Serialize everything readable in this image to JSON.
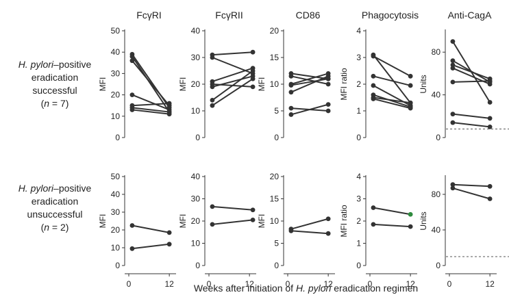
{
  "row_labels": [
    {
      "organism": "H. pylori",
      "status": "–positive",
      "line2": "eradication",
      "line3": "successful",
      "n_label": "n",
      "n_rest": " = 7)",
      "n_open": "("
    },
    {
      "organism": "H. pylori",
      "status": "–positive",
      "line2": "eradication",
      "line3": "unsuccessful",
      "n_label": "n",
      "n_rest": " = 2)",
      "n_open": "("
    }
  ],
  "x_caption": {
    "before": "Weeks after initiation of ",
    "italic": "H. pylori",
    "after": " eradication regimen"
  },
  "x_ticks": [
    "0",
    "12"
  ],
  "colors": {
    "line": "#333333",
    "highlight_point": "#2e8b3e",
    "dashed": "#555555"
  },
  "chart_data": [
    {
      "type": "line",
      "title": "FcγRI",
      "row": 0,
      "col": 0,
      "ylabel": "MFI",
      "ylim": [
        0,
        50
      ],
      "yticks": [
        0,
        10,
        20,
        30,
        40,
        50
      ],
      "x": [
        1,
        12
      ],
      "series": [
        {
          "values": [
            39,
            14
          ]
        },
        {
          "values": [
            38,
            12
          ]
        },
        {
          "values": [
            36,
            15
          ]
        },
        {
          "values": [
            20,
            13
          ]
        },
        {
          "values": [
            15,
            16
          ]
        },
        {
          "values": [
            14,
            12
          ]
        },
        {
          "values": [
            13,
            11
          ]
        }
      ]
    },
    {
      "type": "line",
      "title": "FcγRII",
      "row": 0,
      "col": 1,
      "ylabel": "MFI",
      "ylim": [
        0,
        40
      ],
      "yticks": [
        0,
        10,
        20,
        30,
        40
      ],
      "x": [
        1,
        13
      ],
      "series": [
        {
          "values": [
            31,
            32
          ]
        },
        {
          "values": [
            30,
            24
          ]
        },
        {
          "values": [
            21,
            26
          ]
        },
        {
          "values": [
            20,
            19
          ]
        },
        {
          "values": [
            19,
            23
          ]
        },
        {
          "values": [
            14,
            25
          ]
        },
        {
          "values": [
            12,
            22
          ]
        }
      ]
    },
    {
      "type": "line",
      "title": "CD86",
      "row": 0,
      "col": 2,
      "ylabel": "MFI",
      "ylim": [
        0,
        20
      ],
      "yticks": [
        0,
        5,
        10,
        15,
        20
      ],
      "x": [
        1,
        12
      ],
      "series": [
        {
          "values": [
            12,
            11
          ]
        },
        {
          "values": [
            11.5,
            10
          ]
        },
        {
          "values": [
            10,
            12
          ]
        },
        {
          "values": [
            9.8,
            11
          ]
        },
        {
          "values": [
            8.5,
            11.5
          ]
        },
        {
          "values": [
            5.5,
            5
          ]
        },
        {
          "values": [
            4.3,
            6.2
          ]
        }
      ]
    },
    {
      "type": "line",
      "title": "Phagocytosis",
      "row": 0,
      "col": 3,
      "ylabel": "MFI ratio",
      "ylim": [
        0,
        4
      ],
      "yticks": [
        0,
        1,
        2,
        3,
        4
      ],
      "x": [
        1,
        12
      ],
      "series": [
        {
          "values": [
            3.1,
            1.3
          ]
        },
        {
          "values": [
            3.05,
            2.3
          ]
        },
        {
          "values": [
            2.3,
            1.95
          ]
        },
        {
          "values": [
            1.95,
            1.2
          ]
        },
        {
          "values": [
            1.6,
            1.15
          ]
        },
        {
          "values": [
            1.5,
            1.3
          ]
        },
        {
          "values": [
            1.45,
            1.1
          ]
        }
      ]
    },
    {
      "type": "line",
      "title": "Anti-CagA",
      "row": 0,
      "col": 4,
      "ylabel": "Units",
      "ylim": [
        0,
        100
      ],
      "yticks": [
        0,
        40,
        80
      ],
      "x": [
        1,
        12
      ],
      "reference_line": 8,
      "series": [
        {
          "values": [
            90,
            33
          ]
        },
        {
          "values": [
            72,
            52
          ]
        },
        {
          "values": [
            68,
            55
          ]
        },
        {
          "values": [
            65,
            50
          ]
        },
        {
          "values": [
            52,
            53
          ]
        },
        {
          "values": [
            22,
            18
          ]
        },
        {
          "values": [
            14,
            10
          ]
        }
      ]
    },
    {
      "type": "line",
      "title": "",
      "row": 1,
      "col": 0,
      "ylabel": "MFI",
      "ylim": [
        0,
        50
      ],
      "yticks": [
        0,
        10,
        20,
        30,
        40,
        50
      ],
      "x": [
        1,
        12
      ],
      "series": [
        {
          "values": [
            22.5,
            18.5
          ]
        },
        {
          "values": [
            9.5,
            12
          ]
        }
      ]
    },
    {
      "type": "line",
      "title": "",
      "row": 1,
      "col": 1,
      "ylabel": "MFI",
      "ylim": [
        0,
        40
      ],
      "yticks": [
        0,
        10,
        20,
        30,
        40
      ],
      "x": [
        1,
        13
      ],
      "series": [
        {
          "values": [
            26.5,
            25
          ]
        },
        {
          "values": [
            18.5,
            20.5
          ]
        }
      ]
    },
    {
      "type": "line",
      "title": "",
      "row": 1,
      "col": 2,
      "ylabel": "MFI",
      "ylim": [
        0,
        20
      ],
      "yticks": [
        0,
        5,
        10,
        15,
        20
      ],
      "x": [
        1,
        12
      ],
      "series": [
        {
          "values": [
            8.2,
            10.5
          ]
        },
        {
          "values": [
            7.8,
            7.2
          ]
        }
      ]
    },
    {
      "type": "line",
      "title": "",
      "row": 1,
      "col": 3,
      "ylabel": "MFI ratio",
      "ylim": [
        0,
        4
      ],
      "yticks": [
        0,
        1,
        2,
        3,
        4
      ],
      "x": [
        1,
        12
      ],
      "series": [
        {
          "values": [
            2.6,
            2.3
          ],
          "end_highlight": true
        },
        {
          "values": [
            1.85,
            1.75
          ]
        }
      ]
    },
    {
      "type": "line",
      "title": "",
      "row": 1,
      "col": 4,
      "ylabel": "Units",
      "ylim": [
        0,
        100
      ],
      "yticks": [
        0,
        40,
        80
      ],
      "x": [
        1,
        12
      ],
      "reference_line": 10,
      "series": [
        {
          "values": [
            91,
            89
          ]
        },
        {
          "values": [
            87,
            75
          ]
        }
      ]
    }
  ]
}
